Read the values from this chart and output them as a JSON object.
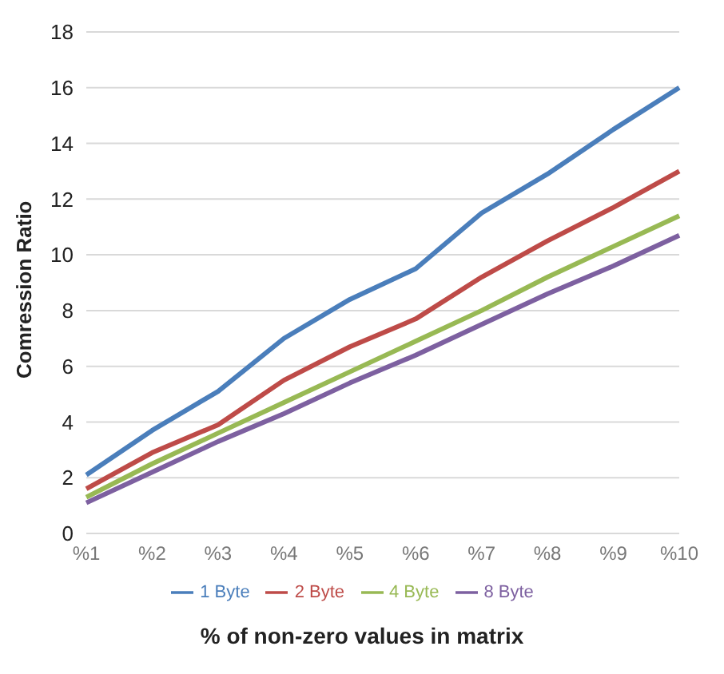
{
  "chart_data": {
    "type": "line",
    "xlabel": "% of non-zero values in matrix",
    "ylabel": "Comression Ratio",
    "categories": [
      "%1",
      "%2",
      "%3",
      "%4",
      "%5",
      "%6",
      "%7",
      "%8",
      "%9",
      "%10"
    ],
    "series": [
      {
        "name": "1 Byte",
        "color": "#4a7ebb",
        "values": [
          2.1,
          3.7,
          5.1,
          7.0,
          8.4,
          9.5,
          11.5,
          12.9,
          14.5,
          16.0
        ]
      },
      {
        "name": "2 Byte",
        "color": "#be4b48",
        "values": [
          1.6,
          2.9,
          3.9,
          5.5,
          6.7,
          7.7,
          9.2,
          10.5,
          11.7,
          13.0
        ]
      },
      {
        "name": "4 Byte",
        "color": "#98b954",
        "values": [
          1.3,
          2.5,
          3.6,
          4.7,
          5.8,
          6.9,
          8.0,
          9.2,
          10.3,
          11.4
        ]
      },
      {
        "name": "8 Byte",
        "color": "#7d60a0",
        "values": [
          1.1,
          2.2,
          3.3,
          4.3,
          5.4,
          6.4,
          7.5,
          8.6,
          9.6,
          10.7
        ]
      }
    ],
    "ylim": [
      0,
      18
    ],
    "yticks": [
      0,
      2,
      4,
      6,
      8,
      10,
      12,
      14,
      16,
      18
    ],
    "grid": "y",
    "legend": "bottom",
    "marker": "none",
    "line_style": "solid"
  }
}
